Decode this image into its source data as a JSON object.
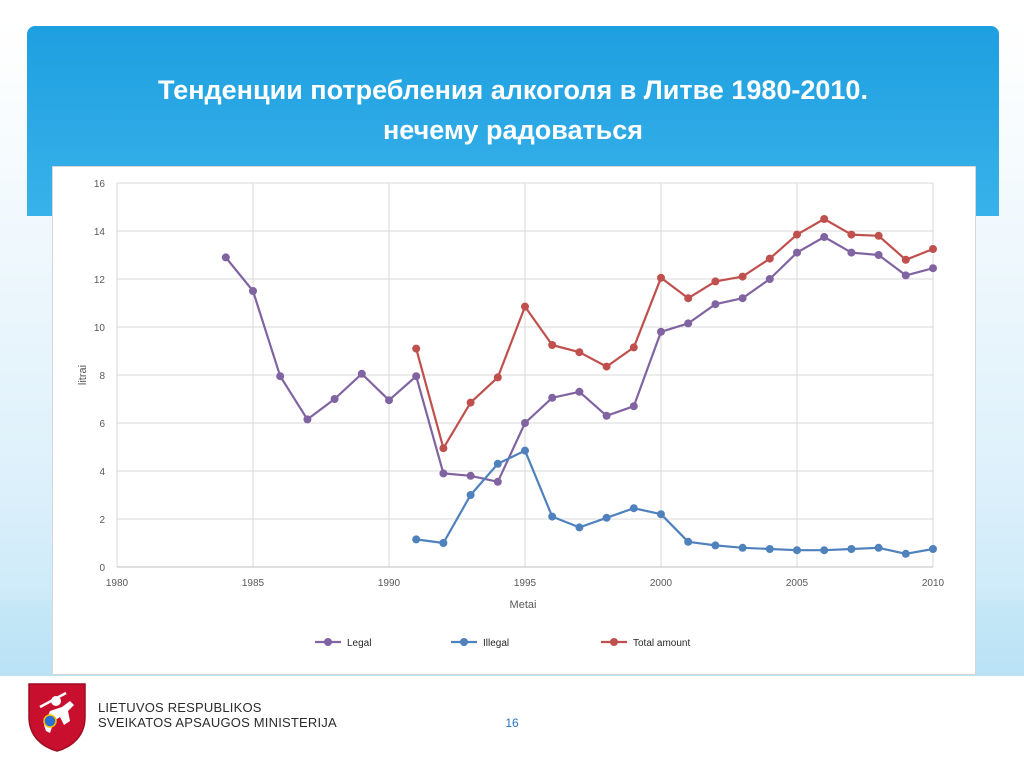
{
  "slide": {
    "title_line1": "Тенденции потребления алкоголя в Литве 1980-2010.",
    "title_line2": "нечему радоваться",
    "page_number": "16"
  },
  "ministry": {
    "line1": "LIETUVOS RESPUBLIKOS",
    "line2": "SVEIKATOS APSAUGOS MINISTERIJA"
  },
  "colors": {
    "legal": "#8064a2",
    "illegal": "#4f81bd",
    "total": "#c0504d",
    "header": "#1e9fe0"
  },
  "chart_data": {
    "type": "line",
    "xlabel": "Metai",
    "ylabel": "litrai",
    "xlim": [
      1980,
      2010
    ],
    "ylim": [
      0,
      16
    ],
    "xticks": [
      1980,
      1985,
      1990,
      1995,
      2000,
      2005,
      2010
    ],
    "yticks": [
      0,
      2,
      4,
      6,
      8,
      10,
      12,
      14,
      16
    ],
    "grid": true,
    "legend_position": "bottom",
    "series": [
      {
        "name": "Legal",
        "x": [
          1984,
          1985,
          1986,
          1987,
          1988,
          1989,
          1990,
          1991,
          1992,
          1993,
          1994,
          1995,
          1996,
          1997,
          1998,
          1999,
          2000,
          2001,
          2002,
          2003,
          2004,
          2005,
          2006,
          2007,
          2008,
          2009,
          2010
        ],
        "y": [
          12.9,
          11.5,
          7.95,
          6.15,
          7.0,
          8.05,
          6.95,
          7.95,
          3.9,
          3.8,
          3.55,
          6.0,
          7.05,
          7.3,
          6.3,
          6.7,
          9.8,
          10.15,
          10.95,
          11.2,
          12.0,
          13.1,
          13.75,
          13.1,
          13.0,
          12.15,
          12.45
        ]
      },
      {
        "name": "Illegal",
        "x": [
          1991,
          1992,
          1993,
          1994,
          1995,
          1996,
          1997,
          1998,
          1999,
          2000,
          2001,
          2002,
          2003,
          2004,
          2005,
          2006,
          2007,
          2008,
          2009,
          2010
        ],
        "y": [
          1.15,
          1.0,
          3.0,
          4.3,
          4.85,
          2.1,
          1.65,
          2.05,
          2.45,
          2.2,
          1.05,
          0.9,
          0.8,
          0.75,
          0.7,
          0.7,
          0.75,
          0.8,
          0.55,
          0.75
        ]
      },
      {
        "name": "Total amount",
        "x": [
          1991,
          1992,
          1993,
          1994,
          1995,
          1996,
          1997,
          1998,
          1999,
          2000,
          2001,
          2002,
          2003,
          2004,
          2005,
          2006,
          2007,
          2008,
          2009,
          2010
        ],
        "y": [
          9.1,
          4.95,
          6.85,
          7.9,
          10.85,
          9.25,
          8.95,
          8.35,
          9.15,
          12.05,
          11.2,
          11.9,
          12.1,
          12.85,
          13.85,
          14.5,
          13.85,
          13.8,
          12.8,
          13.25
        ]
      }
    ]
  }
}
